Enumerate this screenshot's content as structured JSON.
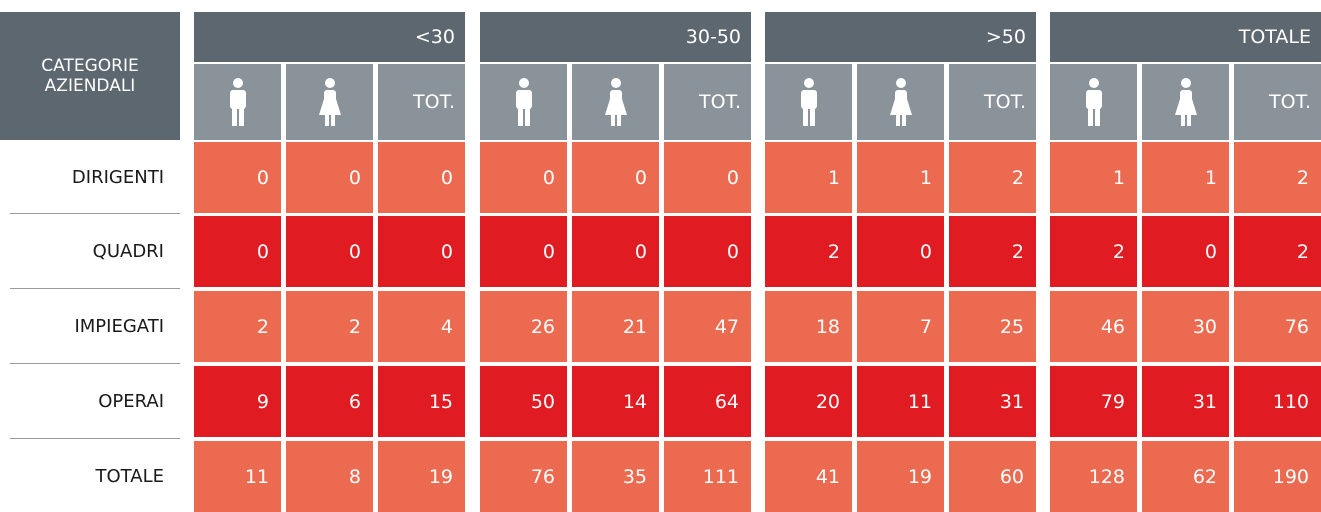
{
  "table": {
    "corner": [
      "CATEGORIE",
      "AZIENDALI"
    ],
    "groups": [
      {
        "label": "<30",
        "total_label": "TOT."
      },
      {
        "label": "30-50",
        "total_label": "TOT."
      },
      {
        "label": ">50",
        "total_label": "TOT."
      },
      {
        "label": "TOTALE",
        "total_label": "TOT."
      }
    ],
    "rows": [
      {
        "label": "DIRIGENTI",
        "values": [
          0,
          0,
          0,
          0,
          0,
          0,
          1,
          1,
          2,
          1,
          1,
          2
        ]
      },
      {
        "label": "QUADRI",
        "values": [
          0,
          0,
          0,
          0,
          0,
          0,
          2,
          0,
          2,
          2,
          0,
          2
        ]
      },
      {
        "label": "IMPIEGATI",
        "values": [
          2,
          2,
          4,
          26,
          21,
          47,
          18,
          7,
          25,
          46,
          30,
          76
        ]
      },
      {
        "label": "OPERAI",
        "values": [
          9,
          6,
          15,
          50,
          14,
          64,
          20,
          11,
          31,
          79,
          31,
          110
        ]
      },
      {
        "label": "TOTALE",
        "values": [
          11,
          8,
          19,
          76,
          35,
          111,
          41,
          19,
          60,
          128,
          62,
          190
        ]
      }
    ]
  }
}
